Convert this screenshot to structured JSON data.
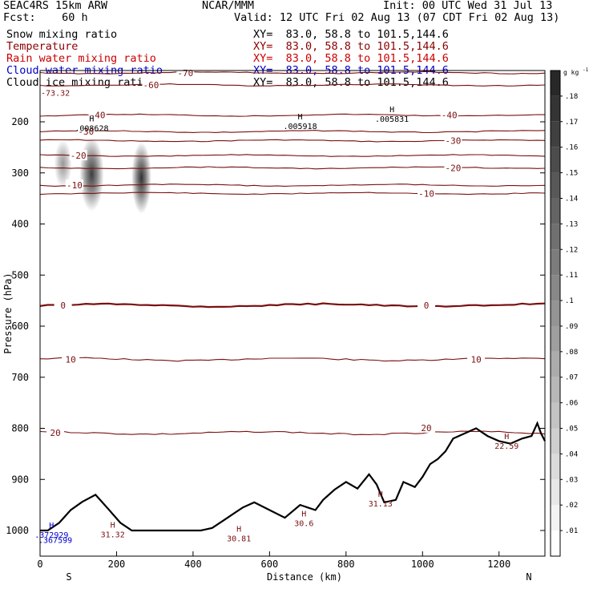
{
  "header": {
    "model": "SEAC4RS 15km ARW",
    "center": "NCAR/MMM",
    "init": "Init: 00 UTC Wed 31 Jul 13",
    "fcst": "Fcst:    60 h",
    "valid": "Valid: 12 UTC Fri 02 Aug 13 (07 CDT Fri 02 Aug 13)",
    "fields": [
      {
        "name": "Snow mixing ratio",
        "xy": "XY=  83.0, 58.8 to 101.5,144.6",
        "color": "#000000"
      },
      {
        "name": "Temperature",
        "xy": "XY=  83.0, 58.8 to 101.5,144.6",
        "color": "#8b0000"
      },
      {
        "name": "Rain water mixing ratio",
        "xy": "XY=  83.0, 58.8 to 101.5,144.6",
        "color": "#cc0000"
      },
      {
        "name": "Cloud water mixing ratio",
        "xy": "XY=  83.0, 58.8 to 101.5,144.6",
        "color": "#0000cc"
      },
      {
        "name": "Cloud ice mixing ratio",
        "xy": "XY=  83.0, 58.8 to 101.5,144.6",
        "color": "#000000"
      }
    ]
  },
  "chart_data": {
    "type": "cross-section",
    "xlabel": "Distance (km)",
    "ylabel": "Pressure (hPa)",
    "xlim": [
      0,
      1320
    ],
    "ylim": [
      1050,
      100
    ],
    "xticks": [
      0,
      200,
      400,
      600,
      800,
      1000,
      1200
    ],
    "yticks": [
      200,
      300,
      400,
      500,
      600,
      700,
      800,
      900,
      1000
    ],
    "x_end_labels": {
      "left": "S",
      "right": "N"
    },
    "colorbar": {
      "unit": "g kg",
      "unit_exp": "-1",
      "ticks": [
        ".01",
        ".02",
        ".03",
        ".04",
        ".05",
        ".06",
        ".07",
        ".08",
        ".09",
        ".1",
        ".11",
        ".12",
        ".13",
        ".14",
        ".15",
        ".16",
        ".17",
        ".18"
      ]
    },
    "temperature_contours": [
      {
        "label": "-70",
        "p": 104
      },
      {
        "label": "-60",
        "p": 128
      },
      {
        "label": "-40",
        "p": 187
      },
      {
        "label": "-30",
        "p": 219
      },
      {
        "label": "-30",
        "p": 237
      },
      {
        "label": "-20",
        "p": 266
      },
      {
        "label": "-20",
        "p": 290
      },
      {
        "label": "-10",
        "p": 324
      },
      {
        "label": "-10",
        "p": 340
      },
      {
        "label": "0",
        "p": 559
      },
      {
        "label": "10",
        "p": 665
      },
      {
        "label": "20",
        "p": 809
      }
    ],
    "contour_labels": [
      {
        "text": "-70",
        "x": 380,
        "p": 104
      },
      {
        "text": "-60",
        "x": 290,
        "p": 128
      },
      {
        "text": "-40",
        "x": 150,
        "p": 187
      },
      {
        "text": "-40",
        "x": 1070,
        "p": 187
      },
      {
        "text": "-30",
        "x": 120,
        "p": 219
      },
      {
        "text": "-30",
        "x": 1080,
        "p": 237
      },
      {
        "text": "-20",
        "x": 100,
        "p": 266
      },
      {
        "text": "-20",
        "x": 1080,
        "p": 290
      },
      {
        "text": "-10",
        "x": 90,
        "p": 324
      },
      {
        "text": "-10",
        "x": 1010,
        "p": 340
      },
      {
        "text": "0",
        "x": 60,
        "p": 559
      },
      {
        "text": "0",
        "x": 1010,
        "p": 559
      },
      {
        "text": "10",
        "x": 80,
        "p": 665
      },
      {
        "text": "10",
        "x": 1140,
        "p": 665
      },
      {
        "text": "20",
        "x": 40,
        "p": 809
      },
      {
        "text": "20",
        "x": 1010,
        "p": 799
      }
    ],
    "maxima_labels": [
      {
        "text": ".008628",
        "x": 135,
        "p": 212,
        "h": true
      },
      {
        "text": ".005918",
        "x": 680,
        "p": 208,
        "h": true
      },
      {
        "text": ".005831",
        "x": 920,
        "p": 194,
        "h": true
      },
      {
        "text": "-73.32",
        "x": 40,
        "p": 143,
        "h": false
      },
      {
        "text": "22.59",
        "x": 1220,
        "p": 834,
        "h": true
      },
      {
        "text": "31.13",
        "x": 890,
        "p": 947,
        "h": true
      },
      {
        "text": "31.32",
        "x": 190,
        "p": 1007,
        "h": true
      },
      {
        "text": "30.81",
        "x": 520,
        "p": 1015,
        "h": true
      },
      {
        "text": "30.6",
        "x": 690,
        "p": 985,
        "h": true
      },
      {
        "text": ".372929",
        "x": 30,
        "p": 1008,
        "h": true
      },
      {
        "text": ".367599",
        "x": 40,
        "p": 1018,
        "h": false
      }
    ],
    "terrain": [
      [
        0,
        1000
      ],
      [
        20,
        1000
      ],
      [
        50,
        985
      ],
      [
        80,
        960
      ],
      [
        110,
        944
      ],
      [
        145,
        930
      ],
      [
        175,
        955
      ],
      [
        210,
        985
      ],
      [
        240,
        1000
      ],
      [
        300,
        1000
      ],
      [
        420,
        1000
      ],
      [
        450,
        995
      ],
      [
        480,
        980
      ],
      [
        510,
        965
      ],
      [
        530,
        955
      ],
      [
        560,
        945
      ],
      [
        600,
        960
      ],
      [
        640,
        975
      ],
      [
        680,
        950
      ],
      [
        720,
        960
      ],
      [
        740,
        940
      ],
      [
        770,
        920
      ],
      [
        800,
        905
      ],
      [
        830,
        918
      ],
      [
        860,
        890
      ],
      [
        880,
        910
      ],
      [
        900,
        945
      ],
      [
        930,
        940
      ],
      [
        950,
        905
      ],
      [
        980,
        915
      ],
      [
        1000,
        895
      ],
      [
        1020,
        870
      ],
      [
        1040,
        860
      ],
      [
        1060,
        845
      ],
      [
        1080,
        820
      ],
      [
        1110,
        810
      ],
      [
        1140,
        800
      ],
      [
        1170,
        815
      ],
      [
        1200,
        825
      ],
      [
        1230,
        830
      ],
      [
        1260,
        820
      ],
      [
        1285,
        815
      ],
      [
        1300,
        790
      ],
      [
        1310,
        810
      ],
      [
        1320,
        825
      ]
    ],
    "snow_cells": [
      {
        "x": 135,
        "p_top": 230,
        "p_bot": 375,
        "w": 55,
        "intensity": 0.85
      },
      {
        "x": 265,
        "p_top": 240,
        "p_bot": 380,
        "w": 45,
        "intensity": 0.9
      },
      {
        "x": 60,
        "p_top": 235,
        "p_bot": 330,
        "w": 40,
        "intensity": 0.45
      }
    ]
  }
}
